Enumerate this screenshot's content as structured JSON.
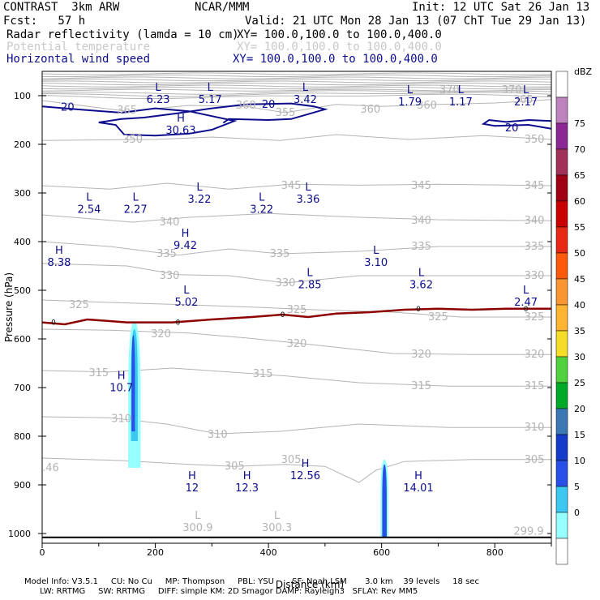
{
  "header": {
    "model": "CONTRAST  3km ARW",
    "center": "NCAR/MMM",
    "init": "Init: 12 UTC Sat 26 Jan 13",
    "fcst": "Fcst:   57 h",
    "valid": "Valid: 21 UTC Mon 28 Jan 13 (07 ChT Tue 29 Jan 13)",
    "field1": "Radar reflectivity (lamda = 10 cm)",
    "field1_xy": "XY= 100.0,100.0 to 100.0,400.0",
    "field2": "Potential temperature",
    "field2_xy": "XY= 100.0,100.0 to 100.0,400.0",
    "field3": "Horizontal wind speed",
    "field3_xy": "XY= 100.0,100.0 to 100.0,400.0"
  },
  "footer": {
    "line1": "Model Info: V3.5.1     CU: No Cu     MP: Thompson     PBL: YSU       SF: Noah LSM       3.0 km    39 levels     18 sec",
    "line2": "      LW: RRTMG     SW: RRTMG     DIFF: simple KM: 2D Smagor DAMP: Rayleigh3   SFLAY: Rev MM5"
  },
  "colors": {
    "blue_text": "#0c0c8c",
    "theta": "#b4b4b4",
    "zero_line": "#8c0000",
    "wind_contour": "#0c0c8c"
  },
  "chart_data": {
    "type": "cross-section",
    "xlabel": "Distance (km)",
    "ylabel": "Pressure (hPa)",
    "xlim": [
      0,
      900
    ],
    "ylim": [
      1020,
      50
    ],
    "x_ticks": [
      0,
      200,
      400,
      600,
      800
    ],
    "y_ticks": [
      100,
      200,
      300,
      400,
      500,
      600,
      700,
      800,
      900,
      1000
    ],
    "theta_labels": [
      {
        "text": "350",
        "x": 870,
        "p": 190
      },
      {
        "text": "350",
        "x": 160,
        "p": 190
      },
      {
        "text": "345",
        "x": 440,
        "p": 285
      },
      {
        "text": "345",
        "x": 670,
        "p": 285
      },
      {
        "text": "345",
        "x": 870,
        "p": 285
      },
      {
        "text": "340",
        "x": 225,
        "p": 360
      },
      {
        "text": "340",
        "x": 670,
        "p": 357
      },
      {
        "text": "340",
        "x": 870,
        "p": 357
      },
      {
        "text": "335",
        "x": 220,
        "p": 425
      },
      {
        "text": "335",
        "x": 420,
        "p": 425
      },
      {
        "text": "335",
        "x": 670,
        "p": 410
      },
      {
        "text": "335",
        "x": 870,
        "p": 410
      },
      {
        "text": "330",
        "x": 225,
        "p": 470
      },
      {
        "text": "330",
        "x": 430,
        "p": 485
      },
      {
        "text": "330",
        "x": 870,
        "p": 470
      },
      {
        "text": "325",
        "x": 65,
        "p": 530
      },
      {
        "text": "325",
        "x": 450,
        "p": 540
      },
      {
        "text": "325",
        "x": 700,
        "p": 555
      },
      {
        "text": "325",
        "x": 870,
        "p": 555
      },
      {
        "text": "320",
        "x": 210,
        "p": 590
      },
      {
        "text": "320",
        "x": 450,
        "p": 610
      },
      {
        "text": "320",
        "x": 670,
        "p": 632
      },
      {
        "text": "320",
        "x": 870,
        "p": 632
      },
      {
        "text": "315",
        "x": 100,
        "p": 670
      },
      {
        "text": "315",
        "x": 390,
        "p": 672
      },
      {
        "text": "315",
        "x": 670,
        "p": 697
      },
      {
        "text": "315",
        "x": 870,
        "p": 697
      },
      {
        "text": "310",
        "x": 140,
        "p": 764
      },
      {
        "text": "310",
        "x": 310,
        "p": 797
      },
      {
        "text": "310",
        "x": 870,
        "p": 782
      },
      {
        "text": "305",
        "x": 340,
        "p": 862
      },
      {
        "text": "305",
        "x": 440,
        "p": 848
      },
      {
        "text": "305",
        "x": 870,
        "p": 848
      },
      {
        "text": "365",
        "x": 150,
        "p": 130
      },
      {
        "text": "360",
        "x": 360,
        "p": 120
      },
      {
        "text": "355",
        "x": 430,
        "p": 135
      },
      {
        "text": "360",
        "x": 580,
        "p": 128
      },
      {
        "text": "360",
        "x": 680,
        "p": 120
      },
      {
        "text": "365",
        "x": 850,
        "p": 108
      },
      {
        "text": "370",
        "x": 720,
        "p": 88
      },
      {
        "text": "370",
        "x": 830,
        "p": 88
      },
      {
        "text": ".46",
        "x": 15,
        "p": 865
      },
      {
        "text": "299.9",
        "x": 860,
        "p": 996
      }
    ],
    "speed_labels": [
      {
        "text": "20",
        "x": 45,
        "p": 124
      },
      {
        "text": "20",
        "x": 400,
        "p": 118
      },
      {
        "text": "20",
        "x": 830,
        "p": 167
      }
    ],
    "zero_labels": [
      {
        "text": "0",
        "x": 20,
        "p": 566
      },
      {
        "text": "0",
        "x": 240,
        "p": 566
      },
      {
        "text": "0",
        "x": 425,
        "p": 550
      },
      {
        "text": "0",
        "x": 665,
        "p": 538
      },
      {
        "text": "0",
        "x": 855,
        "p": 538
      }
    ],
    "extrema": [
      {
        "type": "L",
        "value": "6.23",
        "x": 205,
        "p": 83
      },
      {
        "type": "L",
        "value": "5.17",
        "x": 297,
        "p": 83
      },
      {
        "type": "L",
        "value": "3.42",
        "x": 465,
        "p": 83
      },
      {
        "type": "L",
        "value": "1.79",
        "x": 650,
        "p": 88
      },
      {
        "type": "L",
        "value": "1.17",
        "x": 740,
        "p": 88
      },
      {
        "type": "L",
        "value": "2.17",
        "x": 855,
        "p": 88
      },
      {
        "type": "H",
        "value": "30.63",
        "x": 245,
        "p": 147
      },
      {
        "type": "L",
        "value": "3.22",
        "x": 278,
        "p": 288
      },
      {
        "type": "L",
        "value": "3.36",
        "x": 470,
        "p": 288
      },
      {
        "type": "L",
        "value": "2.54",
        "x": 83,
        "p": 309
      },
      {
        "type": "L",
        "value": "2.27",
        "x": 165,
        "p": 309
      },
      {
        "type": "L",
        "value": "3.22",
        "x": 388,
        "p": 309
      },
      {
        "type": "H",
        "value": "9.42",
        "x": 253,
        "p": 383
      },
      {
        "type": "H",
        "value": "8.38",
        "x": 30,
        "p": 418
      },
      {
        "type": "L",
        "value": "3.10",
        "x": 590,
        "p": 418
      },
      {
        "type": "L",
        "value": "2.85",
        "x": 473,
        "p": 464
      },
      {
        "type": "L",
        "value": "3.62",
        "x": 670,
        "p": 464
      },
      {
        "type": "L",
        "value": "5.02",
        "x": 255,
        "p": 500
      },
      {
        "type": "L",
        "value": "2.47",
        "x": 855,
        "p": 500
      },
      {
        "type": "H",
        "value": "10.7",
        "x": 140,
        "p": 676
      },
      {
        "type": "H",
        "value": "12.56",
        "x": 465,
        "p": 857
      },
      {
        "type": "H",
        "value": "12",
        "x": 265,
        "p": 882
      },
      {
        "type": "H",
        "value": "12.3",
        "x": 362,
        "p": 882
      },
      {
        "type": "H",
        "value": "14.01",
        "x": 665,
        "p": 882
      },
      {
        "type": "L",
        "value": "300.9",
        "x": 275,
        "p": 963
      },
      {
        "type": "L",
        "value": "300.3",
        "x": 415,
        "p": 963
      }
    ],
    "colorbar": {
      "unit": "dBZ",
      "levels": [
        0,
        5,
        10,
        15,
        20,
        25,
        30,
        35,
        40,
        45,
        50,
        55,
        60,
        65,
        70,
        75
      ],
      "colors": [
        "#ffffff",
        "#96ffff",
        "#3cc8f0",
        "#2850e6",
        "#143cc8",
        "#3c78b4",
        "#00aa28",
        "#50d23c",
        "#f5dc28",
        "#ffb432",
        "#fa9632",
        "#fa5a0a",
        "#e62814",
        "#c80000",
        "#a00014",
        "#a0325a",
        "#8c2896",
        "#be82be",
        "#ffffff"
      ]
    }
  }
}
